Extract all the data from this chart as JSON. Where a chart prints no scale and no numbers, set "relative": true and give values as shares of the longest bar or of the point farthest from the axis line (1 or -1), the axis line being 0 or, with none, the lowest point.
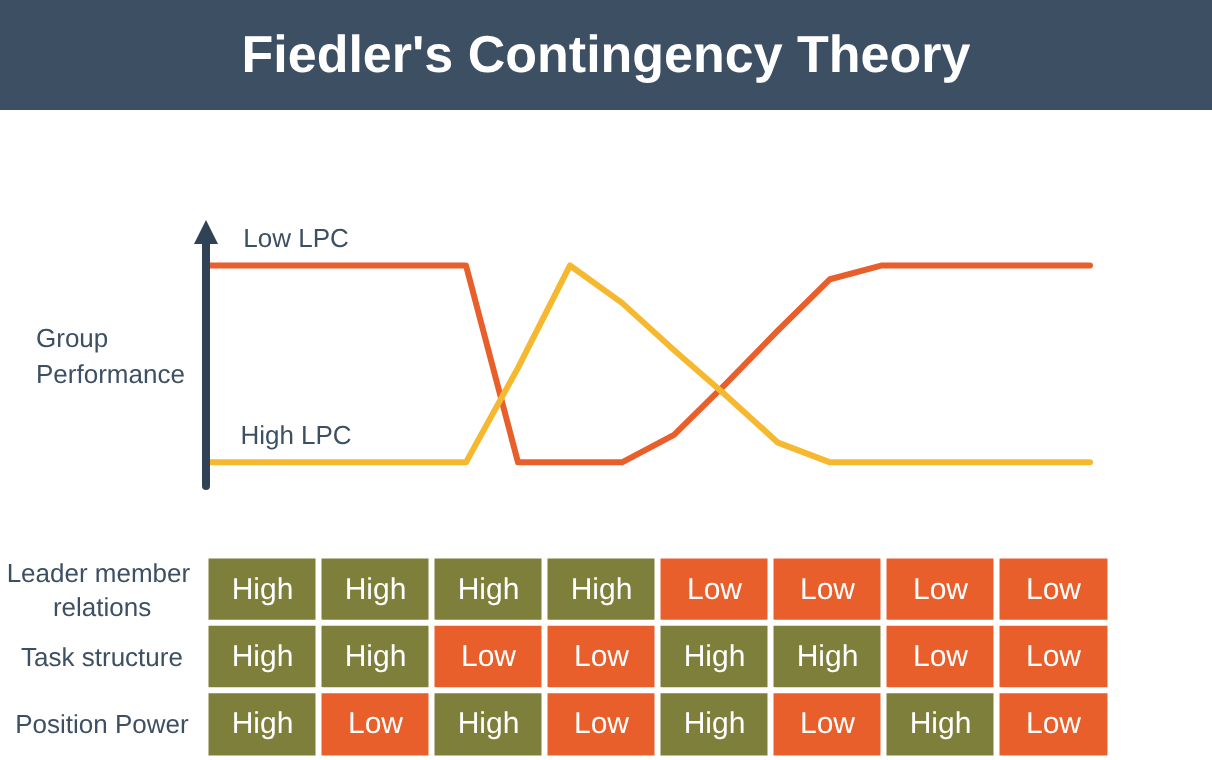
{
  "chart_data": [
    {
      "type": "line",
      "title": "Fiedler's Contingency Theory",
      "ylabel": "Group Performance",
      "relative": true,
      "grid": false,
      "legend": false,
      "marker": "none",
      "line_style": "solid",
      "categories": [
        null,
        null,
        null,
        null,
        null,
        null,
        null,
        null,
        null,
        null,
        null,
        null,
        null,
        null,
        null,
        null,
        null,
        null
      ],
      "series": [
        {
          "name": "Low LPC",
          "color": "#e95f2c",
          "values": [
            1,
            1,
            1,
            1,
            1,
            1,
            0,
            0,
            0,
            0.14,
            0.4,
            0.67,
            0.93,
            1,
            1,
            1,
            1,
            1
          ]
        },
        {
          "name": "High LPC",
          "color": "#f5b82e",
          "values": [
            0,
            0,
            0,
            0,
            0,
            0,
            0.48,
            1,
            0.81,
            0.57,
            0.34,
            0.1,
            0,
            0,
            0,
            0,
            0,
            0
          ]
        }
      ]
    },
    {
      "type": "other",
      "y_categories": [
        "Leader member relations",
        "Task structure",
        "Position Power"
      ],
      "colors": [
        [
          "#7f7f3c",
          "#7f7f3c",
          "#7f7f3c",
          "#7f7f3c",
          "#e95f2c",
          "#e95f2c",
          "#e95f2c",
          "#e95f2c"
        ],
        [
          "#7f7f3c",
          "#7f7f3c",
          "#e95f2c",
          "#e95f2c",
          "#7f7f3c",
          "#7f7f3c",
          "#e95f2c",
          "#e95f2c"
        ],
        [
          "#7f7f3c",
          "#e95f2c",
          "#7f7f3c",
          "#e95f2c",
          "#7f7f3c",
          "#e95f2c",
          "#7f7f3c",
          "#e95f2c"
        ]
      ],
      "cell_labels": [
        [
          "High",
          "High",
          "High",
          "High",
          "Low",
          "Low",
          "Low",
          "Low"
        ],
        [
          "High",
          "High",
          "Low",
          "Low",
          "High",
          "High",
          "Low",
          "Low"
        ],
        [
          "High",
          "Low",
          "High",
          "Low",
          "High",
          "Low",
          "High",
          "Low"
        ]
      ]
    }
  ]
}
